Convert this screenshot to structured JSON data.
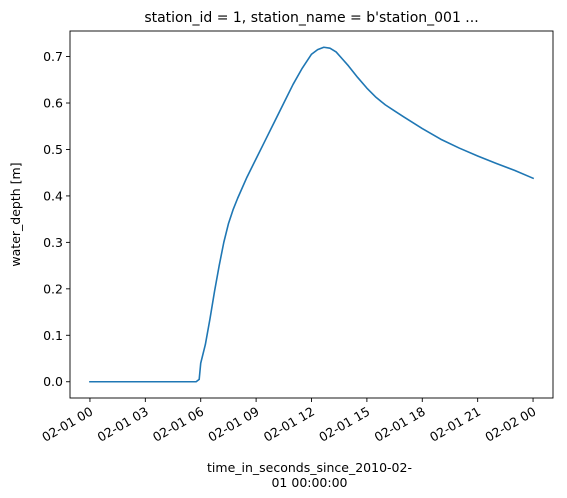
{
  "chart_data": {
    "type": "line",
    "title": "station_id = 1, station_name = b'station_001   ...",
    "xlabel": "time_in_seconds_since_2010-02-\n01 00:00:00",
    "ylabel": "water_depth [m]",
    "xlim": [
      "2010-02-01 00:00",
      "2010-02-02 00:00"
    ],
    "ylim": [
      -0.035,
      0.755
    ],
    "x_ticks": [
      {
        "value": "2010-02-01 00:00",
        "label": "02-01 00"
      },
      {
        "value": "2010-02-01 03:00",
        "label": "02-01 03"
      },
      {
        "value": "2010-02-01 06:00",
        "label": "02-01 06"
      },
      {
        "value": "2010-02-01 09:00",
        "label": "02-01 09"
      },
      {
        "value": "2010-02-01 12:00",
        "label": "02-01 12"
      },
      {
        "value": "2010-02-01 15:00",
        "label": "02-01 15"
      },
      {
        "value": "2010-02-01 18:00",
        "label": "02-01 18"
      },
      {
        "value": "2010-02-01 21:00",
        "label": "02-01 21"
      },
      {
        "value": "2010-02-02 00:00",
        "label": "02-02 00"
      }
    ],
    "y_ticks": [
      {
        "value": 0.0,
        "label": "0.0"
      },
      {
        "value": 0.1,
        "label": "0.1"
      },
      {
        "value": 0.2,
        "label": "0.2"
      },
      {
        "value": 0.3,
        "label": "0.3"
      },
      {
        "value": 0.4,
        "label": "0.4"
      },
      {
        "value": 0.5,
        "label": "0.5"
      },
      {
        "value": 0.6,
        "label": "0.6"
      },
      {
        "value": 0.7,
        "label": "0.7"
      }
    ],
    "grid": false,
    "legend": "none",
    "series": [
      {
        "color": "#1f77b4",
        "x": [
          "2010-02-01 00:00",
          "2010-02-01 01:00",
          "2010-02-01 02:00",
          "2010-02-01 03:00",
          "2010-02-01 04:00",
          "2010-02-01 05:00",
          "2010-02-01 05:45",
          "2010-02-01 05:55",
          "2010-02-01 06:00",
          "2010-02-01 06:15",
          "2010-02-01 06:30",
          "2010-02-01 06:45",
          "2010-02-01 07:00",
          "2010-02-01 07:15",
          "2010-02-01 07:30",
          "2010-02-01 07:45",
          "2010-02-01 08:00",
          "2010-02-01 08:30",
          "2010-02-01 09:00",
          "2010-02-01 09:30",
          "2010-02-01 10:00",
          "2010-02-01 10:30",
          "2010-02-01 11:00",
          "2010-02-01 11:30",
          "2010-02-01 12:00",
          "2010-02-01 12:20",
          "2010-02-01 12:40",
          "2010-02-01 13:00",
          "2010-02-01 13:20",
          "2010-02-01 13:40",
          "2010-02-01 14:00",
          "2010-02-01 14:30",
          "2010-02-01 15:00",
          "2010-02-01 15:30",
          "2010-02-01 16:00",
          "2010-02-01 16:30",
          "2010-02-01 17:00",
          "2010-02-01 18:00",
          "2010-02-01 19:00",
          "2010-02-01 20:00",
          "2010-02-01 21:00",
          "2010-02-01 22:00",
          "2010-02-01 23:00",
          "2010-02-02 00:00"
        ],
        "y": [
          0.0,
          0.0,
          0.0,
          0.0,
          0.0,
          0.0,
          0.0,
          0.005,
          0.04,
          0.08,
          0.135,
          0.195,
          0.25,
          0.3,
          0.34,
          0.37,
          0.395,
          0.44,
          0.48,
          0.52,
          0.56,
          0.6,
          0.64,
          0.675,
          0.705,
          0.715,
          0.72,
          0.718,
          0.71,
          0.695,
          0.68,
          0.655,
          0.632,
          0.612,
          0.596,
          0.583,
          0.57,
          0.545,
          0.522,
          0.503,
          0.486,
          0.47,
          0.455,
          0.438
        ]
      }
    ]
  }
}
